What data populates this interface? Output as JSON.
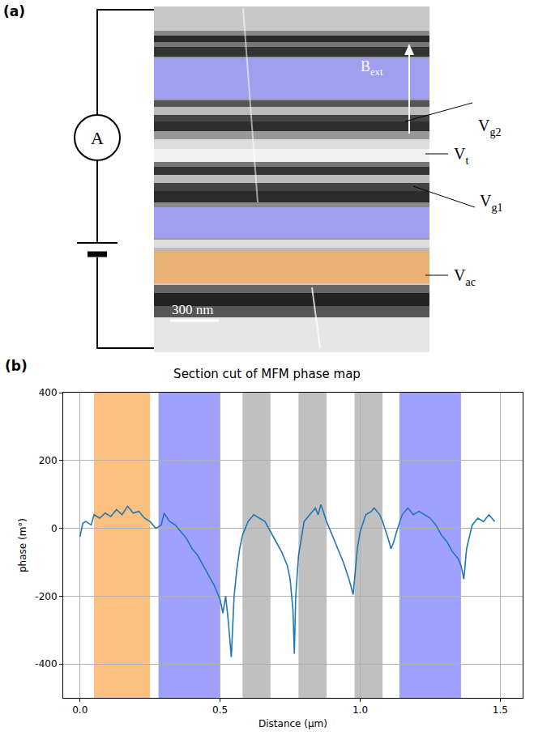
{
  "panel_a": {
    "label": "(a)",
    "ammeter": "A",
    "scale_bar": "300 nm",
    "field": {
      "text": "B",
      "sub": "ext"
    },
    "electrodes": [
      {
        "text": "V",
        "sub": "g2"
      },
      {
        "text": "V",
        "sub": "t"
      },
      {
        "text": "V",
        "sub": "g1"
      },
      {
        "text": "V",
        "sub": "ac"
      }
    ]
  },
  "panel_b_label": "(b)",
  "chart_data": {
    "type": "line",
    "title": "Section cut of MFM phase map",
    "x_label": "Distance (µm)",
    "y_label": "phase (m°)",
    "x": [
      0.0,
      0.01,
      0.02,
      0.04,
      0.05,
      0.07,
      0.09,
      0.11,
      0.13,
      0.15,
      0.17,
      0.19,
      0.21,
      0.23,
      0.25,
      0.27,
      0.29,
      0.3,
      0.32,
      0.34,
      0.36,
      0.38,
      0.4,
      0.42,
      0.44,
      0.46,
      0.48,
      0.5,
      0.51,
      0.52,
      0.53,
      0.54,
      0.55,
      0.56,
      0.57,
      0.58,
      0.6,
      0.62,
      0.64,
      0.66,
      0.68,
      0.7,
      0.72,
      0.74,
      0.75,
      0.76,
      0.765,
      0.77,
      0.78,
      0.8,
      0.82,
      0.84,
      0.85,
      0.86,
      0.88,
      0.9,
      0.92,
      0.94,
      0.96,
      0.97,
      0.975,
      0.98,
      0.99,
      1.0,
      1.02,
      1.04,
      1.05,
      1.07,
      1.08,
      1.1,
      1.11,
      1.12,
      1.13,
      1.15,
      1.17,
      1.19,
      1.21,
      1.23,
      1.25,
      1.27,
      1.29,
      1.31,
      1.33,
      1.35,
      1.36,
      1.37,
      1.38,
      1.4,
      1.42,
      1.44,
      1.46,
      1.48
    ],
    "series": [
      {
        "color": "#1f77b4",
        "values": [
          -25,
          15,
          20,
          10,
          40,
          30,
          45,
          35,
          55,
          40,
          65,
          45,
          50,
          30,
          20,
          0,
          10,
          45,
          20,
          10,
          -10,
          -30,
          -60,
          -80,
          -110,
          -140,
          -170,
          -210,
          -250,
          -200,
          -280,
          -380,
          -200,
          -120,
          -60,
          -20,
          20,
          40,
          30,
          20,
          -10,
          -40,
          -70,
          -110,
          -150,
          -240,
          -370,
          -200,
          -80,
          20,
          40,
          60,
          40,
          70,
          20,
          -20,
          -60,
          -100,
          -150,
          -180,
          -195,
          -150,
          -60,
          -10,
          40,
          50,
          60,
          40,
          20,
          -30,
          -60,
          -40,
          -10,
          40,
          60,
          40,
          50,
          40,
          30,
          10,
          -20,
          -40,
          -70,
          -90,
          -110,
          -150,
          -60,
          10,
          30,
          20,
          40,
          20
        ]
      }
    ],
    "bands": [
      {
        "x0": 0.05,
        "x1": 0.25,
        "color": "#fbbf80"
      },
      {
        "x0": 0.28,
        "x1": 0.5,
        "color": "#a0a0ff"
      },
      {
        "x0": 0.58,
        "x1": 0.68,
        "color": "#c0c0c0"
      },
      {
        "x0": 0.78,
        "x1": 0.88,
        "color": "#c0c0c0"
      },
      {
        "x0": 0.98,
        "x1": 1.08,
        "color": "#c0c0c0"
      },
      {
        "x0": 1.14,
        "x1": 1.36,
        "color": "#a0a0ff"
      }
    ],
    "xlim": [
      -0.06,
      1.58
    ],
    "xticks": [
      {
        "value": 0,
        "label": "0.0"
      },
      {
        "value": 0.5,
        "label": "0.5"
      },
      {
        "value": 1,
        "label": "1.0"
      },
      {
        "value": 1.5,
        "label": "1.5"
      }
    ],
    "ylim": [
      -500,
      400
    ],
    "yticks": [
      -400,
      -200,
      0,
      200,
      400
    ],
    "grid": true
  }
}
